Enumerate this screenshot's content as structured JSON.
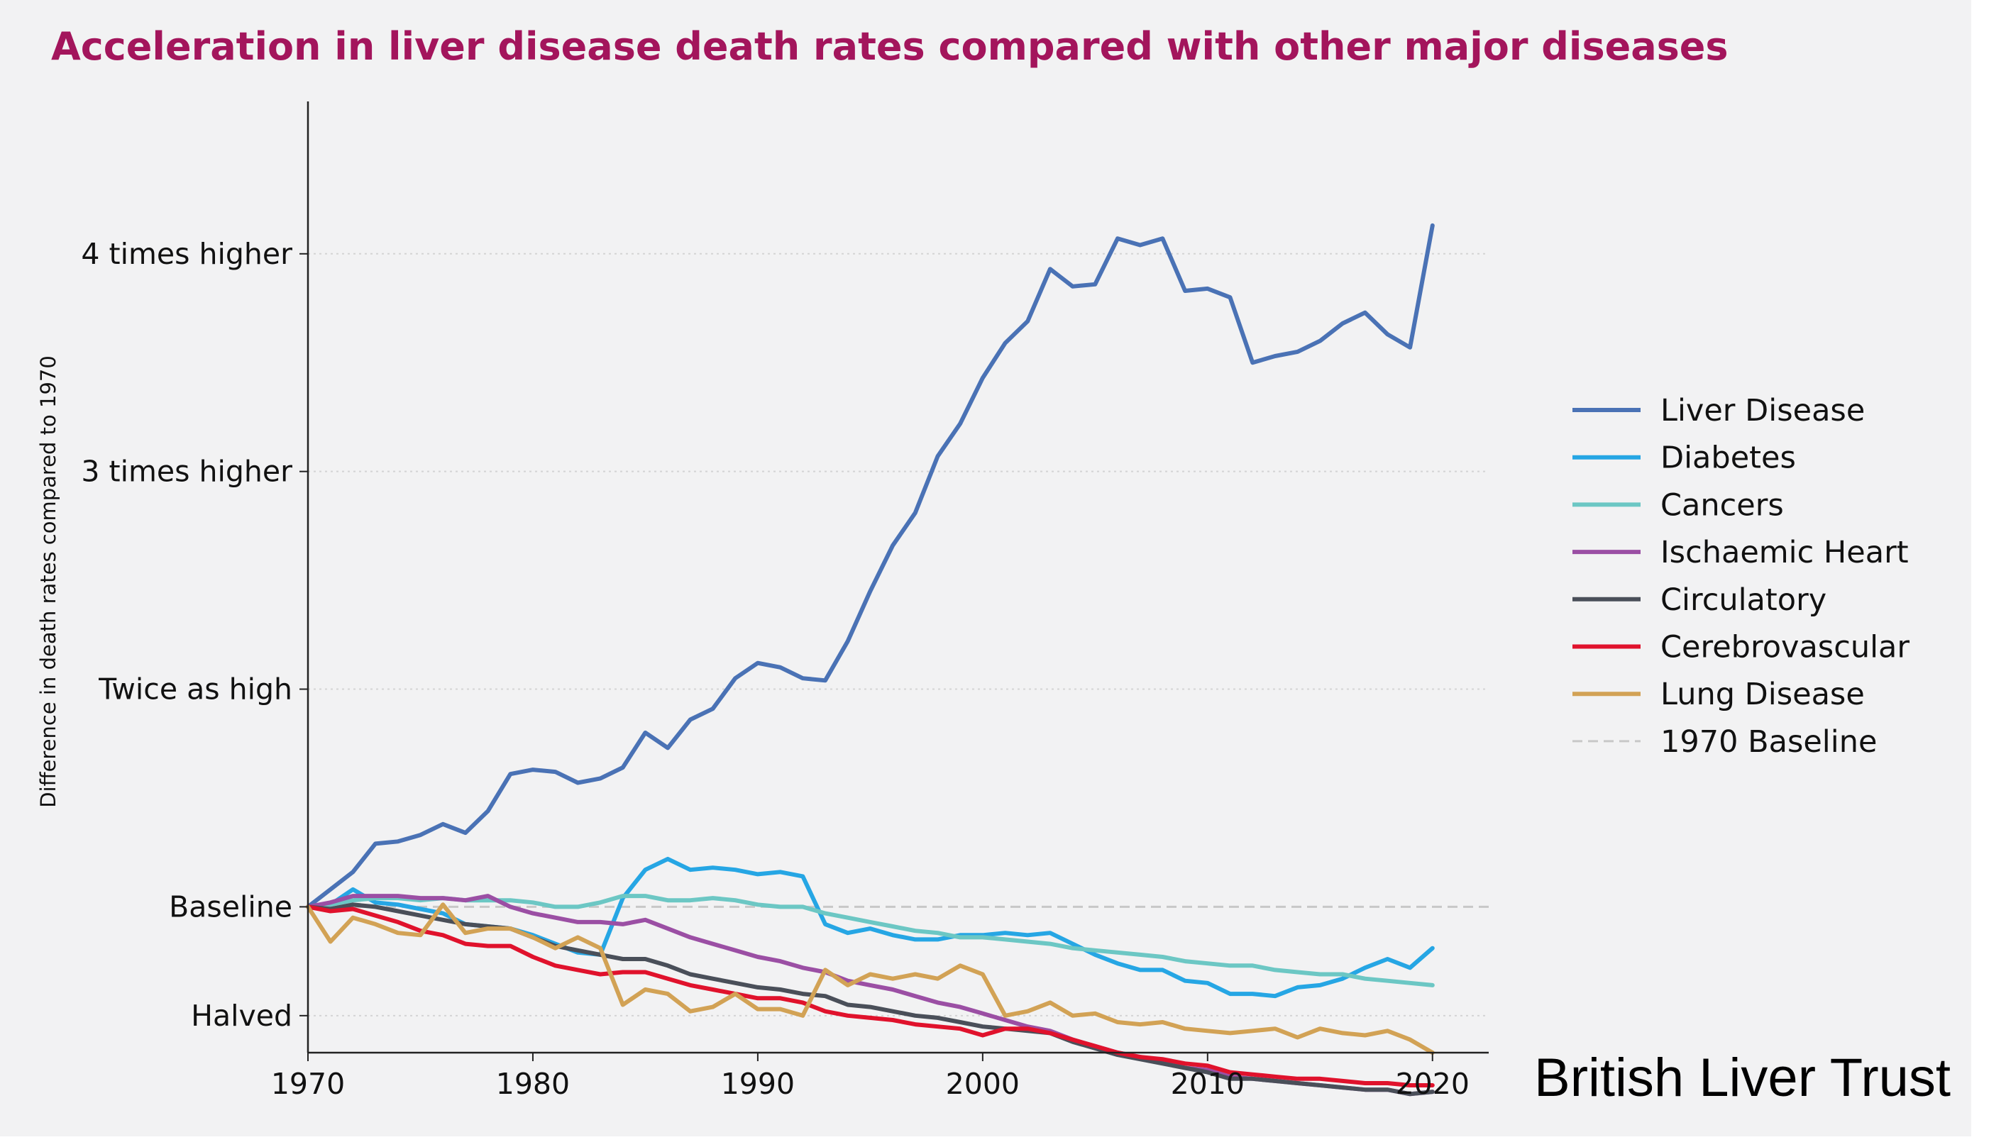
{
  "title": "Acceleration in liver disease death rates compared with other major diseases",
  "brand": "British Liver Trust",
  "chart_data": {
    "type": "line",
    "ylabel": "Difference in death rates compared to 1970",
    "xlabel": "",
    "xlim": [
      1970,
      2022.5
    ],
    "ylim": [
      0.33,
      4.7
    ],
    "x_ticks": [
      {
        "value": 1970,
        "label": "1970"
      },
      {
        "value": 1980,
        "label": "1980"
      },
      {
        "value": 1990,
        "label": "1990"
      },
      {
        "value": 2000,
        "label": "2000"
      },
      {
        "value": 2010,
        "label": "2010"
      },
      {
        "value": 2020,
        "label": "2020"
      }
    ],
    "y_ticks": [
      {
        "value": 0.5,
        "label": "Halved"
      },
      {
        "value": 1,
        "label": "Baseline"
      },
      {
        "value": 2,
        "label": "Twice as high"
      },
      {
        "value": 3,
        "label": "3 times higher"
      },
      {
        "value": 4,
        "label": "4 times higher"
      }
    ],
    "grid": "horizontal dotted",
    "legend_position": "right",
    "baseline": {
      "name": "1970 Baseline",
      "value": 1,
      "color": "#c8c8c8"
    },
    "x": [
      1970,
      1971,
      1972,
      1973,
      1974,
      1975,
      1976,
      1977,
      1978,
      1979,
      1980,
      1981,
      1982,
      1983,
      1984,
      1985,
      1986,
      1987,
      1988,
      1989,
      1990,
      1991,
      1992,
      1993,
      1994,
      1995,
      1996,
      1997,
      1998,
      1999,
      2000,
      2001,
      2002,
      2003,
      2004,
      2005,
      2006,
      2007,
      2008,
      2009,
      2010,
      2011,
      2012,
      2013,
      2014,
      2015,
      2016,
      2017,
      2018,
      2019,
      2020
    ],
    "series": [
      {
        "name": "Liver Disease",
        "color": "#4a72b5",
        "values": [
          1.0,
          1.08,
          1.16,
          1.29,
          1.3,
          1.33,
          1.38,
          1.34,
          1.44,
          1.61,
          1.63,
          1.62,
          1.57,
          1.59,
          1.64,
          1.8,
          1.73,
          1.86,
          1.91,
          2.05,
          2.12,
          2.1,
          2.05,
          2.04,
          2.22,
          2.45,
          2.66,
          2.81,
          3.07,
          3.22,
          3.43,
          3.59,
          3.69,
          3.93,
          3.85,
          3.86,
          4.07,
          4.04,
          4.07,
          3.83,
          3.84,
          3.8,
          3.5,
          3.53,
          3.55,
          3.6,
          3.68,
          3.73,
          3.63,
          3.57,
          4.13
        ]
      },
      {
        "name": "Diabetes",
        "color": "#26a6e4",
        "values": [
          1.0,
          1.01,
          1.08,
          1.02,
          1.01,
          0.99,
          0.97,
          0.92,
          0.91,
          0.9,
          0.87,
          0.83,
          0.79,
          0.78,
          1.04,
          1.17,
          1.22,
          1.17,
          1.18,
          1.17,
          1.15,
          1.16,
          1.14,
          0.92,
          0.88,
          0.9,
          0.87,
          0.85,
          0.85,
          0.87,
          0.87,
          0.88,
          0.87,
          0.88,
          0.83,
          0.78,
          0.74,
          0.71,
          0.71,
          0.66,
          0.65,
          0.6,
          0.6,
          0.59,
          0.63,
          0.64,
          0.67,
          0.72,
          0.76,
          0.72,
          0.81
        ]
      },
      {
        "name": "Cancers",
        "color": "#6cc7c4",
        "values": [
          1.0,
          1.01,
          1.03,
          1.04,
          1.04,
          1.03,
          1.04,
          1.03,
          1.03,
          1.03,
          1.02,
          1.0,
          1.0,
          1.02,
          1.05,
          1.05,
          1.03,
          1.03,
          1.04,
          1.03,
          1.01,
          1.0,
          1.0,
          0.97,
          0.95,
          0.93,
          0.91,
          0.89,
          0.88,
          0.86,
          0.86,
          0.85,
          0.84,
          0.83,
          0.81,
          0.8,
          0.79,
          0.78,
          0.77,
          0.75,
          0.74,
          0.73,
          0.73,
          0.71,
          0.7,
          0.69,
          0.69,
          0.67,
          0.66,
          0.65,
          0.64
        ]
      },
      {
        "name": "Ischaemic Heart",
        "color": "#9b4fa4",
        "values": [
          1.0,
          1.02,
          1.05,
          1.05,
          1.05,
          1.04,
          1.04,
          1.03,
          1.05,
          1.0,
          0.97,
          0.95,
          0.93,
          0.93,
          0.92,
          0.94,
          0.9,
          0.86,
          0.83,
          0.8,
          0.77,
          0.75,
          0.72,
          0.7,
          0.66,
          0.64,
          0.62,
          0.59,
          0.56,
          0.54,
          0.51,
          0.48,
          0.45,
          0.43,
          0.39,
          0.36,
          0.33,
          0.31,
          0.29,
          0.26,
          0.25,
          0.22,
          0.21,
          0.2,
          0.19,
          0.18,
          0.17,
          0.16,
          0.16,
          0.14,
          0.15
        ]
      },
      {
        "name": "Circulatory",
        "color": "#4a4f59",
        "values": [
          1.0,
          0.99,
          1.01,
          1.0,
          0.98,
          0.96,
          0.94,
          0.92,
          0.91,
          0.9,
          0.86,
          0.82,
          0.8,
          0.78,
          0.76,
          0.76,
          0.73,
          0.69,
          0.67,
          0.65,
          0.63,
          0.62,
          0.6,
          0.59,
          0.55,
          0.54,
          0.52,
          0.5,
          0.49,
          0.47,
          0.45,
          0.44,
          0.43,
          0.42,
          0.38,
          0.35,
          0.32,
          0.3,
          0.28,
          0.26,
          0.24,
          0.21,
          0.21,
          0.2,
          0.19,
          0.18,
          0.17,
          0.16,
          0.16,
          0.14,
          0.15
        ]
      },
      {
        "name": "Cerebrovascular",
        "color": "#e0122c",
        "values": [
          1.0,
          0.98,
          0.99,
          0.96,
          0.93,
          0.89,
          0.87,
          0.83,
          0.82,
          0.82,
          0.77,
          0.73,
          0.71,
          0.69,
          0.7,
          0.7,
          0.67,
          0.64,
          0.62,
          0.6,
          0.58,
          0.58,
          0.56,
          0.52,
          0.5,
          0.49,
          0.48,
          0.46,
          0.45,
          0.44,
          0.41,
          0.44,
          0.44,
          0.42,
          0.39,
          0.36,
          0.33,
          0.31,
          0.3,
          0.28,
          0.27,
          0.24,
          0.23,
          0.22,
          0.21,
          0.21,
          0.2,
          0.19,
          0.19,
          0.18,
          0.18
        ]
      },
      {
        "name": "Lung Disease",
        "color": "#d2a255",
        "values": [
          1.0,
          0.84,
          0.95,
          0.92,
          0.88,
          0.87,
          1.01,
          0.88,
          0.9,
          0.9,
          0.86,
          0.81,
          0.86,
          0.81,
          0.55,
          0.62,
          0.6,
          0.52,
          0.54,
          0.6,
          0.53,
          0.53,
          0.5,
          0.71,
          0.64,
          0.69,
          0.67,
          0.69,
          0.67,
          0.73,
          0.69,
          0.5,
          0.52,
          0.56,
          0.5,
          0.51,
          0.47,
          0.46,
          0.47,
          0.44,
          0.43,
          0.42,
          0.43,
          0.44,
          0.4,
          0.44,
          0.42,
          0.41,
          0.43,
          0.39,
          0.33
        ]
      }
    ]
  }
}
